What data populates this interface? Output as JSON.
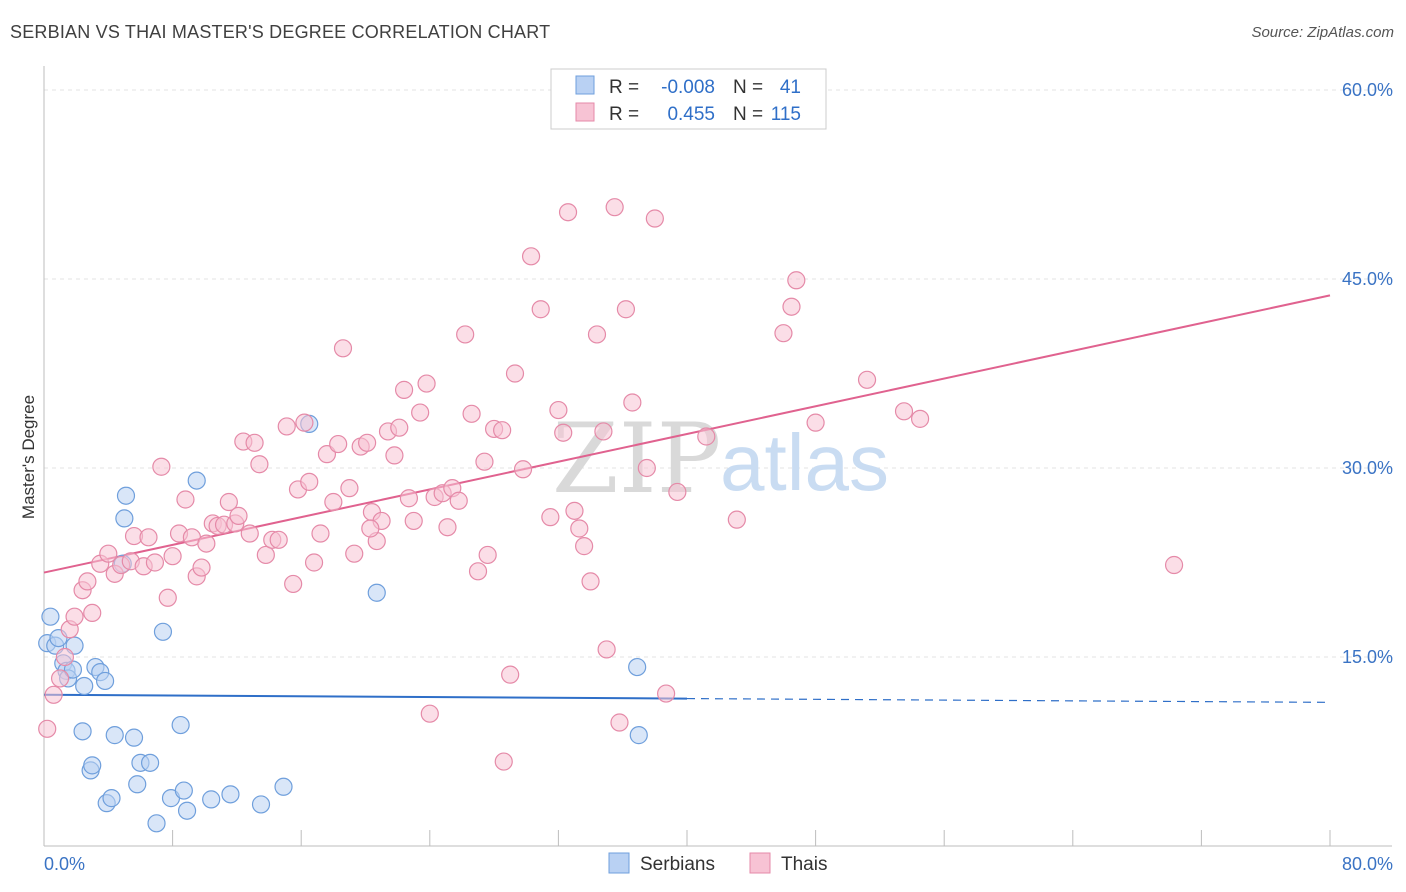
{
  "header": {
    "title": "SERBIAN VS THAI MASTER'S DEGREE CORRELATION CHART",
    "source": "Source: ZipAtlas.com"
  },
  "watermark": {
    "zip": "ZIP",
    "atlas": "atlas"
  },
  "legend": {
    "rows": [
      {
        "r_label": "R =",
        "r_value": "-0.008",
        "n_label": "N =",
        "n_value": "41",
        "color": "#9dc0ee"
      },
      {
        "r_label": "R =",
        "r_value": "0.455",
        "n_label": "N =",
        "n_value": "115",
        "color": "#f5b6cb"
      }
    ]
  },
  "bottom_legend": {
    "serbians": "Serbians",
    "thais": "Thais"
  },
  "chart_data": {
    "type": "scatter",
    "xlabel": "",
    "ylabel": "Master's Degree",
    "xlim": [
      0,
      80
    ],
    "ylim": [
      0,
      60
    ],
    "x_tick_labels": [
      "0.0%",
      "80.0%"
    ],
    "y_ticks": [
      15,
      30,
      45,
      60
    ],
    "y_tick_labels": [
      "15.0%",
      "30.0%",
      "45.0%",
      "60.0%"
    ],
    "grid": true,
    "series": [
      {
        "name": "Serbians",
        "color": "#6f9fdc",
        "fill": "#b9d1f3",
        "trend": {
          "x0": 0,
          "y0": 12.0,
          "x1": 40,
          "y1": 11.7,
          "x_end": 80,
          "y_end": 11.4
        },
        "points": [
          [
            0.2,
            16.1
          ],
          [
            0.4,
            18.2
          ],
          [
            0.7,
            15.9
          ],
          [
            0.9,
            16.5
          ],
          [
            1.2,
            14.5
          ],
          [
            1.4,
            13.9
          ],
          [
            1.5,
            13.3
          ],
          [
            1.9,
            15.9
          ],
          [
            1.8,
            14.0
          ],
          [
            2.5,
            12.7
          ],
          [
            2.4,
            9.1
          ],
          [
            2.9,
            6.0
          ],
          [
            3.0,
            6.4
          ],
          [
            3.2,
            14.2
          ],
          [
            3.5,
            13.8
          ],
          [
            3.8,
            13.1
          ],
          [
            3.9,
            3.4
          ],
          [
            4.2,
            3.8
          ],
          [
            4.4,
            8.8
          ],
          [
            5.0,
            26.0
          ],
          [
            5.1,
            27.8
          ],
          [
            5.6,
            8.6
          ],
          [
            5.8,
            4.9
          ],
          [
            6.0,
            6.6
          ],
          [
            6.6,
            6.6
          ],
          [
            7.0,
            1.8
          ],
          [
            7.4,
            17.0
          ],
          [
            7.9,
            3.8
          ],
          [
            8.5,
            9.6
          ],
          [
            8.7,
            4.4
          ],
          [
            8.9,
            2.8
          ],
          [
            9.5,
            29.0
          ],
          [
            10.4,
            3.7
          ],
          [
            11.6,
            4.1
          ],
          [
            13.5,
            3.3
          ],
          [
            14.9,
            4.7
          ],
          [
            16.5,
            33.5
          ],
          [
            20.7,
            20.1
          ],
          [
            4.9,
            22.4
          ],
          [
            36.9,
            14.2
          ],
          [
            37.0,
            8.8
          ]
        ]
      },
      {
        "name": "Thais",
        "color": "#e58aa8",
        "fill": "#f7c3d4",
        "trend": {
          "x0": 0,
          "y0": 21.7,
          "x1": 80,
          "y1": 43.7
        },
        "points": [
          [
            0.2,
            9.3
          ],
          [
            0.6,
            12.0
          ],
          [
            1.0,
            13.3
          ],
          [
            1.3,
            15.0
          ],
          [
            1.6,
            17.2
          ],
          [
            1.9,
            18.2
          ],
          [
            2.4,
            20.3
          ],
          [
            2.7,
            21.0
          ],
          [
            3.0,
            18.5
          ],
          [
            3.5,
            22.4
          ],
          [
            4.0,
            23.2
          ],
          [
            4.4,
            21.6
          ],
          [
            4.8,
            22.3
          ],
          [
            5.4,
            22.6
          ],
          [
            5.6,
            24.6
          ],
          [
            6.2,
            22.2
          ],
          [
            6.5,
            24.5
          ],
          [
            6.9,
            22.5
          ],
          [
            7.3,
            30.1
          ],
          [
            7.7,
            19.7
          ],
          [
            8.0,
            23.0
          ],
          [
            8.4,
            24.8
          ],
          [
            8.8,
            27.5
          ],
          [
            9.2,
            24.5
          ],
          [
            9.5,
            21.4
          ],
          [
            9.8,
            22.1
          ],
          [
            10.1,
            24.0
          ],
          [
            10.5,
            25.6
          ],
          [
            10.8,
            25.4
          ],
          [
            11.2,
            25.5
          ],
          [
            11.5,
            27.3
          ],
          [
            11.9,
            25.6
          ],
          [
            12.1,
            26.2
          ],
          [
            12.4,
            32.1
          ],
          [
            12.8,
            24.8
          ],
          [
            13.1,
            32.0
          ],
          [
            13.4,
            30.3
          ],
          [
            13.8,
            23.1
          ],
          [
            14.2,
            24.3
          ],
          [
            14.6,
            24.3
          ],
          [
            15.1,
            33.3
          ],
          [
            15.5,
            20.8
          ],
          [
            15.8,
            28.3
          ],
          [
            16.2,
            33.6
          ],
          [
            16.5,
            28.9
          ],
          [
            16.8,
            22.5
          ],
          [
            17.2,
            24.8
          ],
          [
            17.6,
            31.1
          ],
          [
            18.0,
            27.3
          ],
          [
            18.3,
            31.9
          ],
          [
            18.6,
            39.5
          ],
          [
            19.0,
            28.4
          ],
          [
            19.3,
            23.2
          ],
          [
            19.7,
            31.7
          ],
          [
            20.1,
            32.0
          ],
          [
            20.4,
            26.5
          ],
          [
            20.7,
            24.2
          ],
          [
            21.0,
            25.8
          ],
          [
            21.4,
            32.9
          ],
          [
            21.8,
            31.0
          ],
          [
            22.1,
            33.2
          ],
          [
            22.4,
            36.2
          ],
          [
            22.7,
            27.6
          ],
          [
            23.0,
            25.8
          ],
          [
            23.4,
            34.4
          ],
          [
            23.8,
            36.7
          ],
          [
            24.3,
            27.7
          ],
          [
            24.8,
            28.0
          ],
          [
            25.1,
            25.3
          ],
          [
            25.4,
            28.4
          ],
          [
            25.8,
            27.4
          ],
          [
            26.2,
            40.6
          ],
          [
            26.6,
            34.3
          ],
          [
            27.0,
            21.8
          ],
          [
            27.4,
            30.5
          ],
          [
            27.6,
            23.1
          ],
          [
            28.0,
            33.1
          ],
          [
            28.5,
            33.0
          ],
          [
            29.0,
            13.6
          ],
          [
            29.3,
            37.5
          ],
          [
            29.8,
            29.9
          ],
          [
            30.3,
            46.8
          ],
          [
            30.9,
            42.6
          ],
          [
            31.5,
            26.1
          ],
          [
            32.0,
            34.6
          ],
          [
            32.3,
            32.8
          ],
          [
            32.6,
            50.3
          ],
          [
            33.0,
            26.6
          ],
          [
            33.3,
            25.2
          ],
          [
            33.6,
            23.8
          ],
          [
            34.0,
            21.0
          ],
          [
            34.4,
            40.6
          ],
          [
            34.8,
            32.9
          ],
          [
            35.0,
            15.6
          ],
          [
            35.5,
            50.7
          ],
          [
            35.8,
            9.8
          ],
          [
            36.2,
            42.6
          ],
          [
            36.6,
            35.2
          ],
          [
            37.5,
            30.0
          ],
          [
            38.0,
            49.8
          ],
          [
            38.7,
            12.1
          ],
          [
            39.4,
            28.1
          ],
          [
            41.2,
            32.5
          ],
          [
            43.1,
            25.9
          ],
          [
            46.0,
            40.7
          ],
          [
            46.5,
            42.8
          ],
          [
            46.8,
            44.9
          ],
          [
            48.0,
            33.6
          ],
          [
            51.2,
            37.0
          ],
          [
            53.5,
            34.5
          ],
          [
            54.5,
            33.9
          ],
          [
            70.3,
            22.3
          ],
          [
            24.0,
            10.5
          ],
          [
            28.6,
            6.7
          ],
          [
            20.3,
            25.2
          ]
        ]
      }
    ]
  }
}
